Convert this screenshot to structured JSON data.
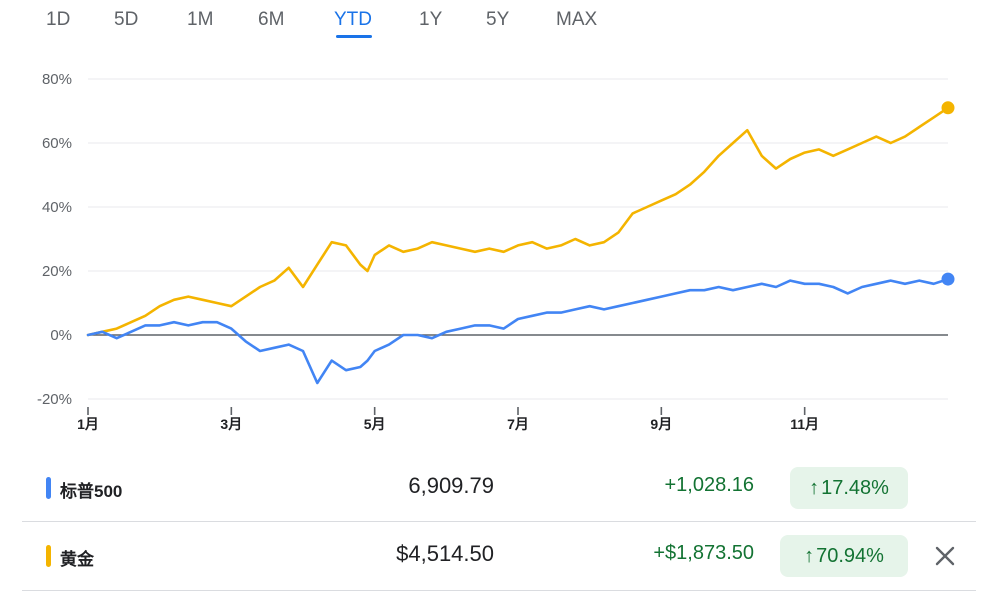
{
  "tabs": [
    {
      "label": "1D",
      "active": false
    },
    {
      "label": "5D",
      "active": false
    },
    {
      "label": "1M",
      "active": false
    },
    {
      "label": "6M",
      "active": false
    },
    {
      "label": "YTD",
      "active": true
    },
    {
      "label": "1Y",
      "active": false
    },
    {
      "label": "5Y",
      "active": false
    },
    {
      "label": "MAX",
      "active": false
    }
  ],
  "chart_data": {
    "type": "line",
    "title": "",
    "xlabel": "",
    "ylabel": "",
    "ylim": [
      -20,
      80
    ],
    "yticks": [
      "80%",
      "60%",
      "40%",
      "20%",
      "0%",
      "-20%"
    ],
    "ytick_values": [
      80,
      60,
      40,
      20,
      0,
      -20
    ],
    "xticks": [
      "1月",
      "3月",
      "5月",
      "7月",
      "9月",
      "11月"
    ],
    "xtick_values": [
      0,
      2,
      4,
      6,
      8,
      10
    ],
    "xlim": [
      0,
      12
    ],
    "grid": true,
    "series": [
      {
        "name": "黄金",
        "color": "#f4b400",
        "x": [
          0,
          0.2,
          0.4,
          0.6,
          0.8,
          1.0,
          1.2,
          1.4,
          1.6,
          1.8,
          2.0,
          2.2,
          2.4,
          2.6,
          2.8,
          3.0,
          3.2,
          3.4,
          3.6,
          3.8,
          3.9,
          4.0,
          4.2,
          4.4,
          4.6,
          4.8,
          5.0,
          5.2,
          5.4,
          5.6,
          5.8,
          6.0,
          6.2,
          6.4,
          6.6,
          6.8,
          7.0,
          7.2,
          7.4,
          7.6,
          7.8,
          8.0,
          8.2,
          8.4,
          8.6,
          8.8,
          9.0,
          9.2,
          9.4,
          9.6,
          9.8,
          10.0,
          10.2,
          10.4,
          10.6,
          10.8,
          11.0,
          11.2,
          11.4,
          11.6,
          11.8,
          12.0
        ],
        "values": [
          0,
          1,
          2,
          4,
          6,
          9,
          11,
          12,
          11,
          10,
          9,
          12,
          15,
          17,
          21,
          15,
          22,
          29,
          28,
          22,
          20,
          25,
          28,
          26,
          27,
          29,
          28,
          27,
          26,
          27,
          26,
          28,
          29,
          27,
          28,
          30,
          28,
          29,
          32,
          38,
          40,
          42,
          44,
          47,
          51,
          56,
          60,
          64,
          56,
          52,
          55,
          57,
          58,
          56,
          58,
          60,
          62,
          60,
          62,
          65,
          68,
          71
        ],
        "end_marker": true
      },
      {
        "name": "标普500",
        "color": "#4285f4",
        "x": [
          0,
          0.2,
          0.4,
          0.6,
          0.8,
          1.0,
          1.2,
          1.4,
          1.6,
          1.8,
          2.0,
          2.2,
          2.4,
          2.6,
          2.8,
          3.0,
          3.2,
          3.4,
          3.6,
          3.8,
          3.9,
          4.0,
          4.2,
          4.4,
          4.6,
          4.8,
          5.0,
          5.2,
          5.4,
          5.6,
          5.8,
          6.0,
          6.2,
          6.4,
          6.6,
          6.8,
          7.0,
          7.2,
          7.4,
          7.6,
          7.8,
          8.0,
          8.2,
          8.4,
          8.6,
          8.8,
          9.0,
          9.2,
          9.4,
          9.6,
          9.8,
          10.0,
          10.2,
          10.4,
          10.6,
          10.8,
          11.0,
          11.2,
          11.4,
          11.6,
          11.8,
          12.0
        ],
        "values": [
          0,
          1,
          -1,
          1,
          3,
          3,
          4,
          3,
          4,
          4,
          2,
          -2,
          -5,
          -4,
          -3,
          -5,
          -15,
          -8,
          -11,
          -10,
          -8,
          -5,
          -3,
          0,
          0,
          -1,
          1,
          2,
          3,
          3,
          2,
          5,
          6,
          7,
          7,
          8,
          9,
          8,
          9,
          10,
          11,
          12,
          13,
          14,
          14,
          15,
          14,
          15,
          16,
          15,
          17,
          16,
          16,
          15,
          13,
          15,
          16,
          17,
          16,
          17,
          16,
          17.48
        ],
        "end_marker": true
      }
    ]
  },
  "rows": [
    {
      "name": "标普500",
      "color": "#4285f4",
      "price": "6,909.79",
      "change": "+1,028.16",
      "arrow": "↑",
      "pct": "17.48%",
      "closable": false
    },
    {
      "name": "黄金",
      "color": "#f4b400",
      "price": "$4,514.50",
      "change": "+$1,873.50",
      "arrow": "↑",
      "pct": "70.94%",
      "closable": true
    }
  ]
}
